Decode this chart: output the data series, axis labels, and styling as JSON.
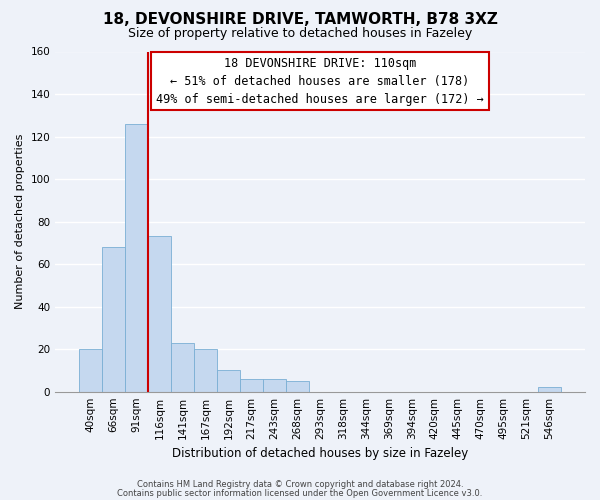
{
  "title": "18, DEVONSHIRE DRIVE, TAMWORTH, B78 3XZ",
  "subtitle": "Size of property relative to detached houses in Fazeley",
  "xlabel": "Distribution of detached houses by size in Fazeley",
  "ylabel": "Number of detached properties",
  "bin_labels": [
    "40sqm",
    "66sqm",
    "91sqm",
    "116sqm",
    "141sqm",
    "167sqm",
    "192sqm",
    "217sqm",
    "243sqm",
    "268sqm",
    "293sqm",
    "318sqm",
    "344sqm",
    "369sqm",
    "394sqm",
    "420sqm",
    "445sqm",
    "470sqm",
    "495sqm",
    "521sqm",
    "546sqm"
  ],
  "bar_heights": [
    20,
    68,
    126,
    73,
    23,
    20,
    10,
    6,
    6,
    5,
    0,
    0,
    0,
    0,
    0,
    0,
    0,
    0,
    0,
    0,
    2
  ],
  "bar_color": "#c5d8ef",
  "bar_edge_color": "#7aafd4",
  "vline_index": 3,
  "vline_color": "#cc0000",
  "ylim": [
    0,
    160
  ],
  "yticks": [
    0,
    20,
    40,
    60,
    80,
    100,
    120,
    140,
    160
  ],
  "annotation_title": "18 DEVONSHIRE DRIVE: 110sqm",
  "annotation_line1": "← 51% of detached houses are smaller (178)",
  "annotation_line2": "49% of semi-detached houses are larger (172) →",
  "footer_line1": "Contains HM Land Registry data © Crown copyright and database right 2024.",
  "footer_line2": "Contains public sector information licensed under the Open Government Licence v3.0.",
  "background_color": "#eef2f9",
  "plot_bg_color": "#eef2f9",
  "grid_color": "#ffffff",
  "title_fontsize": 11,
  "subtitle_fontsize": 9,
  "annotation_fontsize": 8.5,
  "ylabel_fontsize": 8,
  "xlabel_fontsize": 8.5,
  "tick_fontsize": 7.5
}
